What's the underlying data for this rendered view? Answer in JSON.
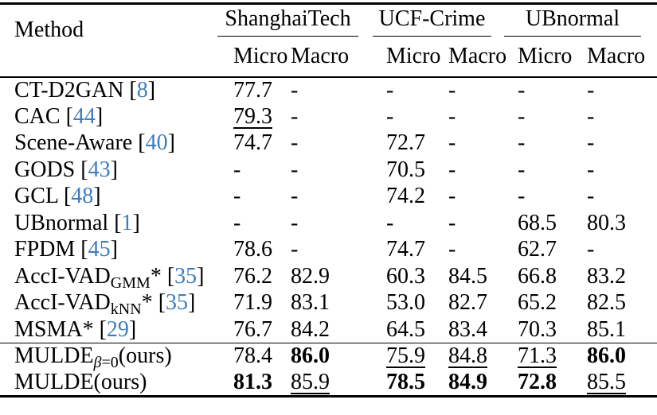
{
  "page": {
    "background_color": "#ffffff",
    "text_color": "#000000",
    "cite_color": "#3d7dbf"
  },
  "table": {
    "method_header": "Method",
    "groups": [
      {
        "label": "ShanghaiTech"
      },
      {
        "label": "UCF-Crime"
      },
      {
        "label": "UBnormal"
      }
    ],
    "sub_headers": [
      "Micro",
      "Macro",
      "Micro",
      "Macro",
      "Micro",
      "Macro"
    ],
    "rows": [
      {
        "method": {
          "name": "CT-D2GAN",
          "sub": "",
          "after": "",
          "cite": "8"
        },
        "cells": [
          [
            "77.7",
            ""
          ],
          [
            "-",
            ""
          ],
          [
            "-",
            ""
          ],
          [
            "-",
            ""
          ],
          [
            "-",
            ""
          ],
          [
            "-",
            ""
          ]
        ]
      },
      {
        "method": {
          "name": "CAC",
          "sub": "",
          "after": "",
          "cite": "44"
        },
        "cells": [
          [
            "79.3",
            "u"
          ],
          [
            "-",
            ""
          ],
          [
            "-",
            ""
          ],
          [
            "-",
            ""
          ],
          [
            "-",
            ""
          ],
          [
            "-",
            ""
          ]
        ]
      },
      {
        "method": {
          "name": "Scene-Aware",
          "sub": "",
          "after": "",
          "cite": "40"
        },
        "cells": [
          [
            "74.7",
            ""
          ],
          [
            "-",
            ""
          ],
          [
            "72.7",
            ""
          ],
          [
            "-",
            ""
          ],
          [
            "-",
            ""
          ],
          [
            "-",
            ""
          ]
        ]
      },
      {
        "method": {
          "name": "GODS",
          "sub": "",
          "after": "",
          "cite": "43"
        },
        "cells": [
          [
            "-",
            ""
          ],
          [
            "-",
            ""
          ],
          [
            "70.5",
            ""
          ],
          [
            "-",
            ""
          ],
          [
            "-",
            ""
          ],
          [
            "-",
            ""
          ]
        ]
      },
      {
        "method": {
          "name": "GCL",
          "sub": "",
          "after": "",
          "cite": "48"
        },
        "cells": [
          [
            "-",
            ""
          ],
          [
            "-",
            ""
          ],
          [
            "74.2",
            ""
          ],
          [
            "-",
            ""
          ],
          [
            "-",
            ""
          ],
          [
            "-",
            ""
          ]
        ]
      },
      {
        "method": {
          "name": "UBnormal",
          "sub": "",
          "after": "",
          "cite": "1"
        },
        "cells": [
          [
            "-",
            ""
          ],
          [
            "-",
            ""
          ],
          [
            "-",
            ""
          ],
          [
            "-",
            ""
          ],
          [
            "68.5",
            ""
          ],
          [
            "80.3",
            ""
          ]
        ]
      },
      {
        "method": {
          "name": "FPDM",
          "sub": "",
          "after": "",
          "cite": "45"
        },
        "cells": [
          [
            "78.6",
            ""
          ],
          [
            "-",
            ""
          ],
          [
            "74.7",
            ""
          ],
          [
            "-",
            ""
          ],
          [
            "62.7",
            ""
          ],
          [
            "-",
            ""
          ]
        ]
      },
      {
        "method": {
          "name": "AccI-VAD",
          "sub": "GMM",
          "after": "*",
          "cite": "35"
        },
        "cells": [
          [
            "76.2",
            ""
          ],
          [
            "82.9",
            ""
          ],
          [
            "60.3",
            ""
          ],
          [
            "84.5",
            ""
          ],
          [
            "66.8",
            ""
          ],
          [
            "83.2",
            ""
          ]
        ]
      },
      {
        "method": {
          "name": "AccI-VAD",
          "sub": "kNN",
          "after": "*",
          "cite": "35"
        },
        "cells": [
          [
            "71.9",
            ""
          ],
          [
            "83.1",
            ""
          ],
          [
            "53.0",
            ""
          ],
          [
            "82.7",
            ""
          ],
          [
            "65.2",
            ""
          ],
          [
            "82.5",
            ""
          ]
        ]
      },
      {
        "method": {
          "name": "MSMA",
          "sub": "",
          "after": "*",
          "cite": "29"
        },
        "cells": [
          [
            "76.7",
            ""
          ],
          [
            "84.2",
            ""
          ],
          [
            "64.5",
            ""
          ],
          [
            "83.4",
            ""
          ],
          [
            "70.3",
            ""
          ],
          [
            "85.1",
            ""
          ]
        ]
      }
    ],
    "ours_rows": [
      {
        "method": {
          "name": "MULDE",
          "sub": "β=0",
          "after": "(ours)",
          "cite": ""
        },
        "cells": [
          [
            "78.4",
            ""
          ],
          [
            "86.0",
            "b"
          ],
          [
            "75.9",
            "u"
          ],
          [
            "84.8",
            "u"
          ],
          [
            "71.3",
            "u"
          ],
          [
            "86.0",
            "b"
          ]
        ]
      },
      {
        "method": {
          "name": "MULDE",
          "sub": "",
          "after": "(ours)",
          "cite": ""
        },
        "cells": [
          [
            "81.3",
            "b"
          ],
          [
            "85.9",
            "u"
          ],
          [
            "78.5",
            "b"
          ],
          [
            "84.9",
            "b"
          ],
          [
            "72.8",
            "b"
          ],
          [
            "85.5",
            "u"
          ]
        ]
      }
    ]
  }
}
